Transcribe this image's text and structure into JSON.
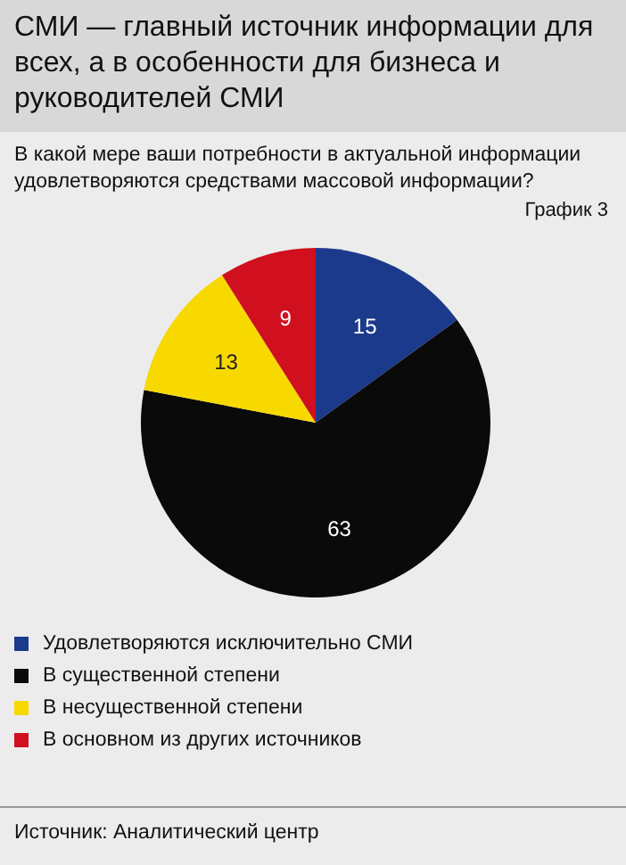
{
  "chart_data": {
    "type": "pie",
    "title": "СМИ — главный источник информации для всех, а в особенности для бизнеса и руководителей СМИ",
    "subtitle": "В какой мере ваши потребности в актуальной информации удовлетворяются средствами массовой информации?",
    "categories": [
      "Удовлетворяются исключительно СМИ",
      "В существенной степени",
      "В несущественной степени",
      "В основном из других источников"
    ],
    "values": [
      15,
      63,
      13,
      9
    ],
    "colors": [
      "#1c3a8c",
      "#0a0a0a",
      "#f7d900",
      "#d0101e"
    ],
    "data_labels": true,
    "legend": "bottom",
    "annotations": [
      "График 3",
      "Источник: Аналитический центр"
    ]
  }
}
